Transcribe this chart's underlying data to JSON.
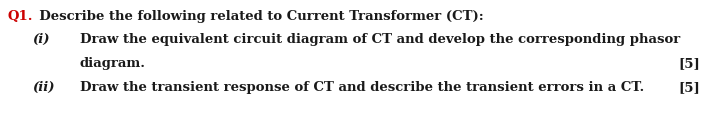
{
  "q_label": "Q1.",
  "q_label_color": "#cc0000",
  "q_text": "  Describe the following related to Current Transformer (CT):",
  "line1_label": "(i)",
  "line1_text": "Draw the equivalent circuit diagram of CT and develop the corresponding phasor",
  "line2_text": "diagram.",
  "line2_mark": "[5]",
  "line3_label": "(ii)",
  "line3_text": "Draw the transient response of CT and describe the transient errors in a CT.",
  "line3_mark": "[5]",
  "bg_color": "#ffffff",
  "font_size": 9.5,
  "text_color": "#1a1a1a"
}
